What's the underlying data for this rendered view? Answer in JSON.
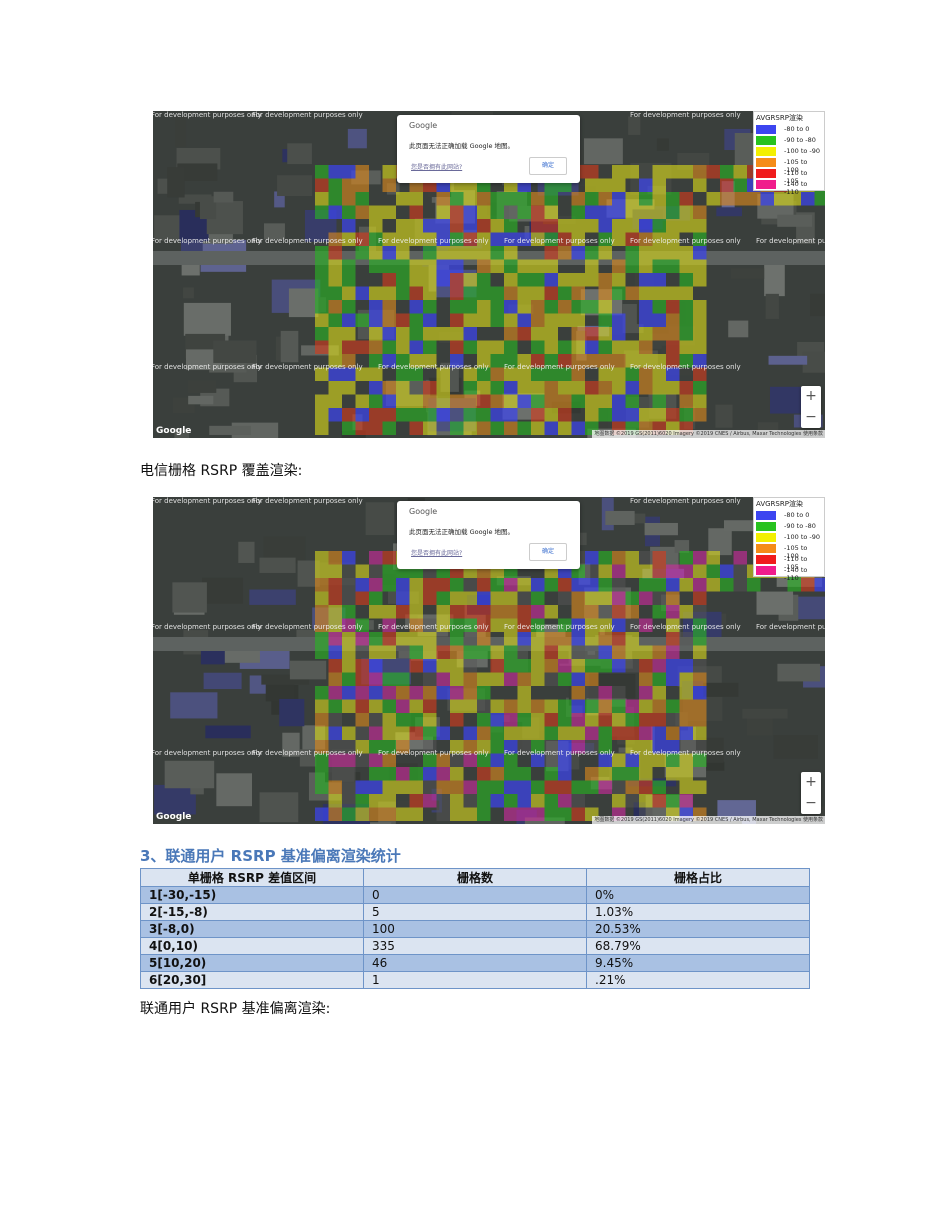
{
  "maps": [
    {
      "watermark": "For development purposes only",
      "dialog": {
        "brand": "Google",
        "message": "此页面无法正确加载 Google 地图。",
        "owner_link": "您是否拥有此网站?",
        "ok": "确定"
      },
      "legend": {
        "title": "AVGRSRP渲染",
        "items": [
          {
            "label": "-80 to    0",
            "color": "#3c45f0"
          },
          {
            "label": "-90 to  -80",
            "color": "#27c21e"
          },
          {
            "label": "-100 to  -90",
            "color": "#f3f000"
          },
          {
            "label": "-105 to -100",
            "color": "#f58c18"
          },
          {
            "label": "-110 to -105",
            "color": "#f01c1c"
          },
          {
            "label": "-140 to -110",
            "color": "#f01c8c"
          }
        ]
      },
      "logo": "Google",
      "attribution": "地图数据 ©2019 GS(2011)6020 Imagery ©2019 CNES / Airbus, Maxar Technologies  使用条款"
    },
    {
      "watermark": "For development purposes only",
      "dialog": {
        "brand": "Google",
        "message": "此页面无法正确加载 Google 地图。",
        "owner_link": "您是否拥有此网站?",
        "ok": "确定"
      },
      "legend": {
        "title": "AVGRSRP渲染",
        "items": [
          {
            "label": "-80 to    0",
            "color": "#3c45f0"
          },
          {
            "label": "-90 to  -80",
            "color": "#27c21e"
          },
          {
            "label": "-100 to  -90",
            "color": "#f3f000"
          },
          {
            "label": "-105 to -100",
            "color": "#f58c18"
          },
          {
            "label": "-110 to -105",
            "color": "#f01c1c"
          },
          {
            "label": "-140 to -110",
            "color": "#f01c8c"
          }
        ]
      },
      "logo": "Google",
      "attribution": "地图数据 ©2019 GS(2011)6020 Imagery ©2019 CNES / Airbus, Maxar Technologies  使用条款"
    }
  ],
  "captions": {
    "telecom": "电信栅格 RSRP 覆盖渲染:",
    "unicom": "联通用户 RSRP 基准偏离渲染:"
  },
  "section_heading": "3、联通用户 RSRP 基准偏离渲染统计",
  "table": {
    "headers": [
      "单栅格 RSRP 差值区间",
      "栅格数",
      "栅格占比"
    ],
    "rows": [
      [
        "1[-30,-15)",
        "0",
        "0%"
      ],
      [
        "2[-15,-8)",
        "5",
        "1.03%"
      ],
      [
        "3[-8,0)",
        "100",
        "20.53%"
      ],
      [
        "4[0,10)",
        "335",
        "68.79%"
      ],
      [
        "5[10,20)",
        "46",
        "9.45%"
      ],
      [
        "6[20,30]",
        "1",
        ".21%"
      ]
    ]
  },
  "zoom": {
    "in": "+",
    "out": "−"
  }
}
